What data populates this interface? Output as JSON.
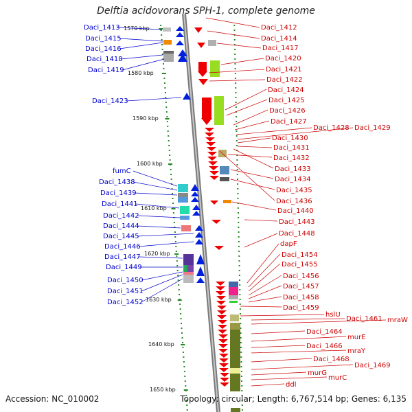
{
  "header": {
    "title": "Delftia acidovorans SPH-1, complete genome"
  },
  "footer": {
    "accession": "Accession: NC_010002",
    "topology": "Topology: circular; Length: 6,767,514 bp; Genes: 6,135"
  },
  "kbp_labels": [
    "1570 kbp",
    "1580 kbp",
    "1590 kbp",
    "1600 kbp",
    "1610 kbp",
    "1620 kbp",
    "1630 kbp",
    "1640 kbp",
    "1650 kbp"
  ],
  "left_genes": [
    "Daci_1413",
    "Daci_1415",
    "Daci_1416",
    "Daci_1418",
    "Daci_1419",
    "Daci_1423",
    "fumC",
    "Daci_1438",
    "Daci_1439",
    "Daci_1441",
    "Daci_1442",
    "Daci_1444",
    "Daci_1445",
    "Daci_1446",
    "Daci_1447",
    "Daci_1449",
    "Daci_1450",
    "Daci_1451",
    "Daci_1452"
  ],
  "right_genes": [
    "Daci_1412",
    "Daci_1414",
    "Daci_1417",
    "Daci_1420",
    "Daci_1421",
    "Daci_1422",
    "Daci_1424",
    "Daci_1425",
    "Daci_1426",
    "Daci_1427",
    "Daci_1428",
    "Daci_1429",
    "Daci_1430",
    "Daci_1431",
    "Daci_1432",
    "Daci_1433",
    "Daci_1434",
    "Daci_1435",
    "Daci_1436",
    "Daci_1440",
    "Daci_1443",
    "Daci_1448",
    "dapF",
    "Daci_1454",
    "Daci_1455",
    "Daci_1456",
    "Daci_1457",
    "Daci_1458",
    "Daci_1459",
    "hslU",
    "Daci_1461",
    "mraW",
    "Daci_1464",
    "murE",
    "Daci_1466",
    "mraY",
    "Daci_1468",
    "Daci_1469",
    "murG",
    "murC",
    "ddl"
  ],
  "colors": {
    "left_label": "#0000cc",
    "right_label": "#cc0000",
    "backbone": "#999999",
    "tick": "#228822"
  }
}
